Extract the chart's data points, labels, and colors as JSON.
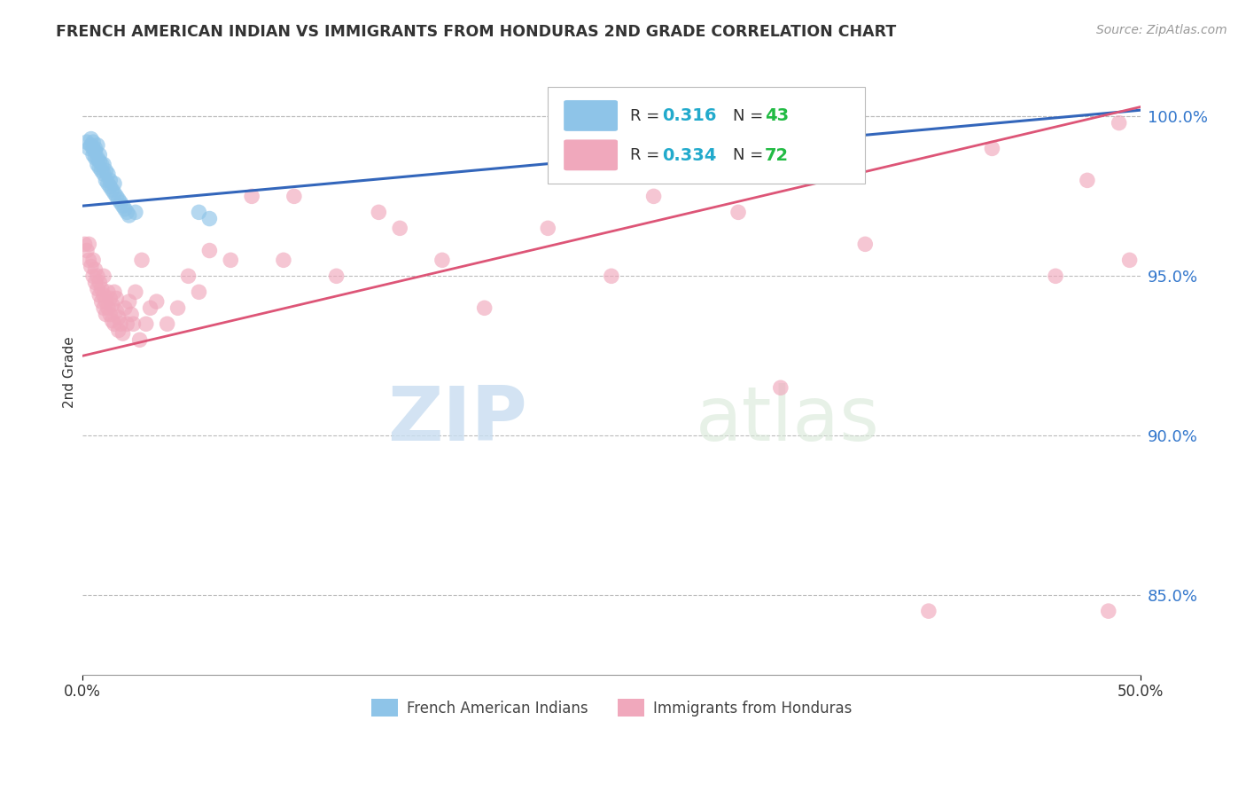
{
  "title": "FRENCH AMERICAN INDIAN VS IMMIGRANTS FROM HONDURAS 2ND GRADE CORRELATION CHART",
  "source": "Source: ZipAtlas.com",
  "ylabel": "2nd Grade",
  "watermark_zip": "ZIP",
  "watermark_atlas": "atlas",
  "blue_R": 0.316,
  "blue_N": 43,
  "pink_R": 0.334,
  "pink_N": 72,
  "blue_label": "French American Indians",
  "pink_label": "Immigrants from Honduras",
  "blue_color": "#8ec4e8",
  "pink_color": "#f0a8bc",
  "blue_line_color": "#3366bb",
  "pink_line_color": "#dd5577",
  "legend_R_color": "#22aacc",
  "legend_N_color": "#22bb44",
  "xlim": [
    0.0,
    50.0
  ],
  "ylim": [
    82.5,
    101.5
  ],
  "yticks": [
    85.0,
    90.0,
    95.0,
    100.0
  ],
  "blue_line_x0": 0.0,
  "blue_line_y0": 97.2,
  "blue_line_x1": 50.0,
  "blue_line_y1": 100.2,
  "pink_line_x0": 0.0,
  "pink_line_y0": 92.5,
  "pink_line_x1": 50.0,
  "pink_line_y1": 100.3,
  "blue_x": [
    0.2,
    0.3,
    0.4,
    0.4,
    0.5,
    0.5,
    0.5,
    0.6,
    0.6,
    0.6,
    0.7,
    0.7,
    0.7,
    0.8,
    0.8,
    0.8,
    0.9,
    0.9,
    1.0,
    1.0,
    1.1,
    1.1,
    1.2,
    1.2,
    1.3,
    1.3,
    1.4,
    1.5,
    1.5,
    1.6,
    1.7,
    1.8,
    1.9,
    2.0,
    2.1,
    2.2,
    2.5,
    5.5,
    6.0,
    26.0,
    30.5,
    31.0,
    32.0
  ],
  "blue_y": [
    99.2,
    99.0,
    99.1,
    99.3,
    98.8,
    99.0,
    99.2,
    98.7,
    98.9,
    99.0,
    98.5,
    98.7,
    99.1,
    98.4,
    98.6,
    98.8,
    98.3,
    98.5,
    98.2,
    98.5,
    98.0,
    98.3,
    97.9,
    98.2,
    97.8,
    98.0,
    97.7,
    97.6,
    97.9,
    97.5,
    97.4,
    97.3,
    97.2,
    97.1,
    97.0,
    96.9,
    97.0,
    97.0,
    96.8,
    99.5,
    99.6,
    99.7,
    99.8
  ],
  "pink_x": [
    0.1,
    0.2,
    0.3,
    0.3,
    0.4,
    0.5,
    0.5,
    0.6,
    0.6,
    0.7,
    0.7,
    0.8,
    0.8,
    0.9,
    0.9,
    1.0,
    1.0,
    1.0,
    1.1,
    1.1,
    1.2,
    1.2,
    1.3,
    1.3,
    1.4,
    1.4,
    1.5,
    1.5,
    1.6,
    1.6,
    1.7,
    1.7,
    1.8,
    1.9,
    2.0,
    2.1,
    2.2,
    2.3,
    2.4,
    2.5,
    2.7,
    2.8,
    3.0,
    3.2,
    3.5,
    4.0,
    4.5,
    5.0,
    5.5,
    6.0,
    7.0,
    8.0,
    9.5,
    10.0,
    12.0,
    14.0,
    15.0,
    17.0,
    19.0,
    22.0,
    25.0,
    27.0,
    31.0,
    33.0,
    37.0,
    40.0,
    43.0,
    46.0,
    47.5,
    48.5,
    49.0,
    49.5
  ],
  "pink_y": [
    96.0,
    95.8,
    95.5,
    96.0,
    95.3,
    95.0,
    95.5,
    94.8,
    95.2,
    94.6,
    95.0,
    94.4,
    94.8,
    94.2,
    94.6,
    94.0,
    94.4,
    95.0,
    93.8,
    94.2,
    94.5,
    94.0,
    94.3,
    93.8,
    94.1,
    93.6,
    94.5,
    93.5,
    93.9,
    94.3,
    93.3,
    93.7,
    93.5,
    93.2,
    94.0,
    93.5,
    94.2,
    93.8,
    93.5,
    94.5,
    93.0,
    95.5,
    93.5,
    94.0,
    94.2,
    93.5,
    94.0,
    95.0,
    94.5,
    95.8,
    95.5,
    97.5,
    95.5,
    97.5,
    95.0,
    97.0,
    96.5,
    95.5,
    94.0,
    96.5,
    95.0,
    97.5,
    97.0,
    91.5,
    96.0,
    84.5,
    99.0,
    95.0,
    98.0,
    84.5,
    99.8,
    95.5
  ]
}
